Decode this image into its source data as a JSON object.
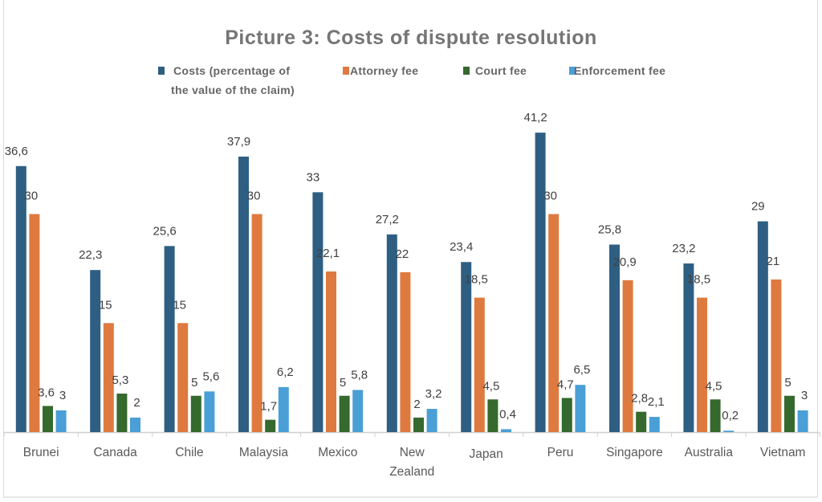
{
  "chart_data": {
    "type": "bar",
    "title": "Picture 3: Costs of dispute resolution",
    "xlabel": "",
    "ylabel": "",
    "ylim": [
      0,
      45
    ],
    "grid": false,
    "legend_position": "top",
    "decimal_separator": ",",
    "categories": [
      "Brunei",
      "Canada",
      "Chile",
      "Malaysia",
      "Mexico",
      "New Zealand",
      "Japan",
      "Peru",
      "Singapore",
      "Australia",
      "Vietnam"
    ],
    "category_label_lines": [
      [
        "Brunei"
      ],
      [
        "Canada"
      ],
      [
        "Chile"
      ],
      [
        "Malaysia"
      ],
      [
        "Mexico"
      ],
      [
        "New",
        "Zealand"
      ],
      [
        "Japan"
      ],
      [
        "Peru"
      ],
      [
        "Singapore"
      ],
      [
        "Australia"
      ],
      [
        "Vietnam"
      ]
    ],
    "series": [
      {
        "name": "Costs (percentage of the value of the claim)",
        "legend_lines": [
          "Costs (percentage of",
          "the value of the claim)"
        ],
        "color": "#2e5f82",
        "values": [
          36.6,
          22.3,
          25.6,
          37.9,
          33,
          27.2,
          23.4,
          41.2,
          25.8,
          23.2,
          29
        ]
      },
      {
        "name": "Attorney fee",
        "legend_lines": [
          "Attorney fee"
        ],
        "color": "#de7a40",
        "values": [
          30,
          15,
          15,
          30,
          22.1,
          22,
          18.5,
          30,
          20.9,
          18.5,
          21
        ]
      },
      {
        "name": "Court fee",
        "legend_lines": [
          "Court fee"
        ],
        "color": "#35692d",
        "values": [
          3.6,
          5.3,
          5,
          1.7,
          5,
          2,
          4.5,
          4.7,
          2.8,
          4.5,
          5
        ]
      },
      {
        "name": "Enforcement fee",
        "legend_lines": [
          "Enforcement fee"
        ],
        "color": "#4a9fd6",
        "values": [
          3,
          2,
          5.6,
          6.2,
          5.8,
          3.2,
          0.4,
          6.5,
          2.1,
          0.2,
          3
        ]
      }
    ]
  }
}
